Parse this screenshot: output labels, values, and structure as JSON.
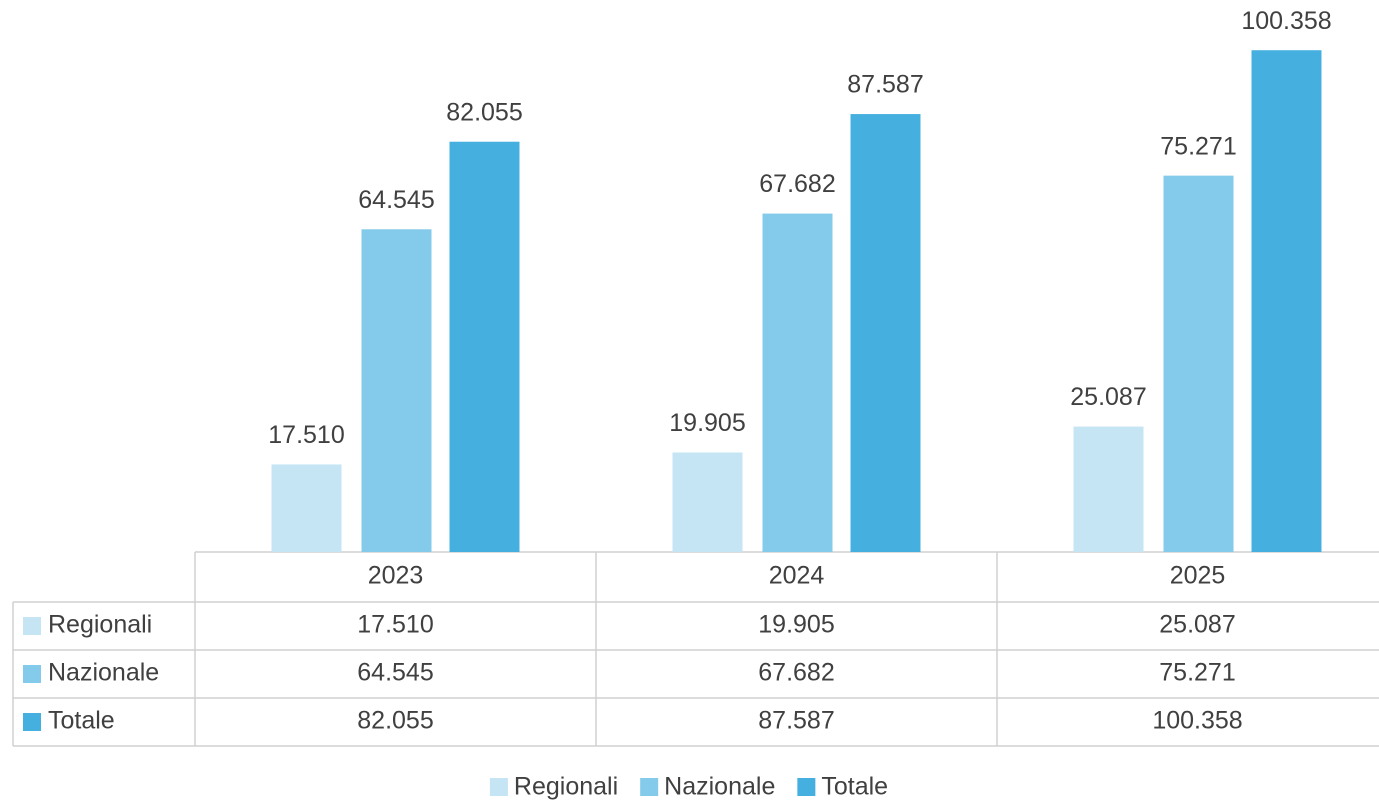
{
  "chart_data": {
    "type": "bar",
    "categories": [
      "2023",
      "2024",
      "2025"
    ],
    "series": [
      {
        "name": "Regionali",
        "color": "#c5e5f5",
        "values": [
          17510,
          19905,
          25087
        ],
        "value_labels": [
          "17.510",
          "19.905",
          "25.087"
        ]
      },
      {
        "name": "Nazionale",
        "color": "#84cbeb",
        "values": [
          64545,
          67682,
          75271
        ],
        "value_labels": [
          "64.545",
          "67.682",
          "75.271"
        ]
      },
      {
        "name": "Totale",
        "color": "#45b0e0",
        "values": [
          82055,
          87587,
          100358
        ],
        "value_labels": [
          "82.055",
          "87.587",
          "100.358"
        ]
      }
    ],
    "ylim": [
      0,
      110000
    ]
  }
}
